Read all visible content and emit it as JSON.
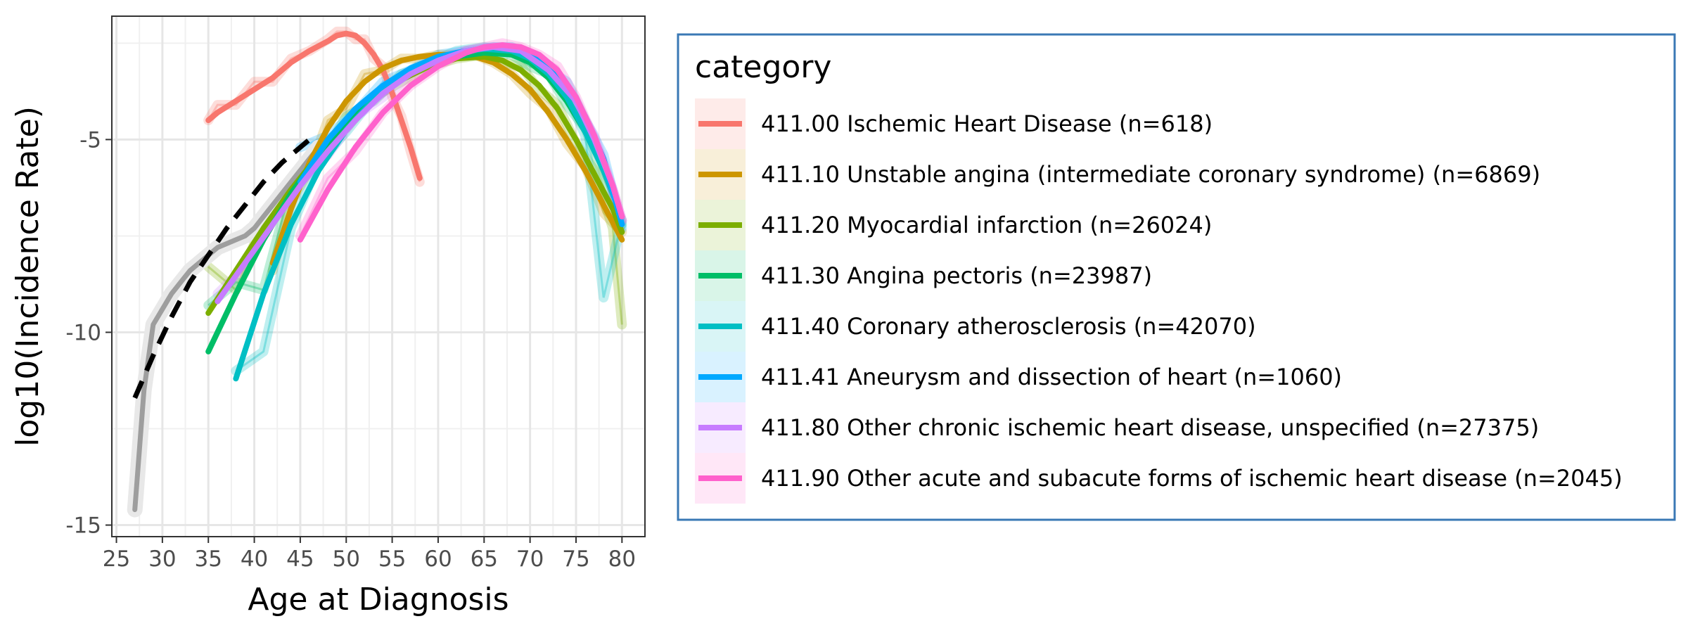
{
  "chart_data": {
    "type": "line",
    "title": "",
    "xlabel": "Age at Diagnosis",
    "ylabel": "log10(Incidence Rate)",
    "xlim": [
      24.5,
      82.5
    ],
    "ylim": [
      -15.3,
      -1.8
    ],
    "x_ticks": [
      25,
      30,
      35,
      40,
      45,
      50,
      55,
      60,
      65,
      70,
      75,
      80
    ],
    "x_tick_labels": [
      "25",
      "30",
      "35",
      "40",
      "45",
      "50",
      "55",
      "60",
      "65",
      "70",
      "75",
      "80"
    ],
    "y_ticks": [
      -15,
      -10,
      -5
    ],
    "y_tick_labels": [
      "-15",
      "-10",
      "-5"
    ],
    "grid": true,
    "legend": {
      "title": "category",
      "placement": "right",
      "entries": [
        "411.00 Ischemic Heart Disease (n=618)",
        "411.10 Unstable angina (intermediate coronary syndrome) (n=6869)",
        "411.20 Myocardial infarction (n=26024)",
        "411.30 Angina pectoris (n=23987)",
        "411.40 Coronary atherosclerosis (n=42070)",
        "411.41 Aneurysm and dissection of heart (n=1060)",
        "411.80 Other chronic ischemic heart disease, unspecified (n=27375)",
        "411.90 Other acute and subacute forms of ischemic heart disease (n=2045)"
      ]
    },
    "reference_series": [
      {
        "name": "overall (observed)",
        "color": "#9e9e9e",
        "x": [
          27,
          28,
          29,
          30,
          31,
          32,
          33,
          34,
          35,
          36,
          37,
          38,
          39,
          40,
          41,
          42,
          43,
          44,
          45,
          46,
          47
        ],
        "y": [
          -14.6,
          -11.5,
          -9.8,
          -9.4,
          -9.0,
          -8.7,
          -8.4,
          -8.2,
          -8.0,
          -7.8,
          -7.7,
          -7.6,
          -7.5,
          -7.3,
          -7.0,
          -6.7,
          -6.4,
          -6.1,
          -5.8,
          -5.5,
          -5.2
        ]
      },
      {
        "name": "overall (fit)",
        "color": "#000000",
        "dashed": true,
        "x": [
          27,
          29,
          31,
          33,
          35,
          37,
          39,
          41,
          43,
          45,
          46
        ],
        "y": [
          -11.7,
          -10.6,
          -9.6,
          -8.7,
          -8.0,
          -7.3,
          -6.7,
          -6.1,
          -5.6,
          -5.2,
          -5.0
        ]
      }
    ],
    "series": [
      {
        "name": "411.00 Ischemic Heart Disease (n=618)",
        "color": "#f8766d",
        "x": [
          35,
          36,
          38,
          40,
          42,
          44,
          46,
          48,
          49,
          50,
          51,
          52,
          53,
          54,
          55,
          56,
          57,
          58
        ],
        "y": [
          -4.5,
          -4.3,
          -4.0,
          -3.7,
          -3.4,
          -3.0,
          -2.7,
          -2.45,
          -2.3,
          -2.25,
          -2.3,
          -2.5,
          -2.8,
          -3.2,
          -3.8,
          -4.5,
          -5.2,
          -6.0
        ],
        "raw_y": [
          -4.5,
          -4.1,
          -4.1,
          -3.5,
          -3.5,
          -2.9,
          -2.7,
          -2.4,
          -2.2,
          -2.2,
          -2.4,
          -2.4,
          -2.9,
          -3.1,
          -3.9,
          -4.4,
          -5.3,
          -6.1
        ]
      },
      {
        "name": "411.10 Unstable angina (intermediate coronary syndrome) (n=6869)",
        "color": "#cd9600",
        "x": [
          42,
          44,
          46,
          48,
          50,
          52,
          54,
          56,
          58,
          60,
          62,
          64,
          66,
          68,
          70,
          72,
          74,
          76,
          78,
          80
        ],
        "y": [
          -8.2,
          -6.8,
          -5.6,
          -4.7,
          -4.0,
          -3.5,
          -3.15,
          -2.95,
          -2.85,
          -2.8,
          -2.8,
          -2.85,
          -3.0,
          -3.3,
          -3.7,
          -4.3,
          -5.0,
          -5.8,
          -6.7,
          -7.6
        ],
        "raw_y": [
          -8.4,
          -6.6,
          -5.8,
          -4.5,
          -4.2,
          -3.3,
          -3.2,
          -2.9,
          -2.9,
          -2.8,
          -2.8,
          -2.8,
          -3.0,
          -3.3,
          -3.8,
          -4.2,
          -5.1,
          -5.7,
          -6.9,
          -7.4
        ]
      },
      {
        "name": "411.20 Myocardial infarction (n=26024)",
        "color": "#7cae00",
        "x": [
          35,
          38,
          41,
          44,
          47,
          50,
          53,
          56,
          59,
          62,
          65,
          67,
          69,
          71,
          73,
          75,
          77,
          79,
          80
        ],
        "y": [
          -9.5,
          -8.4,
          -7.3,
          -6.3,
          -5.4,
          -4.6,
          -3.95,
          -3.45,
          -3.1,
          -2.9,
          -2.85,
          -2.95,
          -3.2,
          -3.6,
          -4.2,
          -5.0,
          -5.9,
          -6.8,
          -7.4
        ],
        "raw_y": [
          -8.3,
          -8.9,
          -7.1,
          -6.5,
          -5.3,
          -4.7,
          -3.9,
          -3.5,
          -3.1,
          -2.9,
          -2.8,
          -3.0,
          -3.1,
          -3.7,
          -4.1,
          -5.1,
          -5.8,
          -7.3,
          -9.8
        ]
      },
      {
        "name": "411.30 Angina pectoris (n=23987)",
        "color": "#00be67",
        "x": [
          35,
          38,
          41,
          44,
          47,
          50,
          53,
          56,
          59,
          62,
          65,
          68,
          70,
          72,
          74,
          76,
          78,
          80
        ],
        "y": [
          -10.5,
          -9.0,
          -7.6,
          -6.4,
          -5.4,
          -4.55,
          -3.9,
          -3.4,
          -3.05,
          -2.85,
          -2.75,
          -2.8,
          -3.0,
          -3.4,
          -4.0,
          -4.8,
          -5.8,
          -7.0
        ],
        "raw_y": [
          -9.3,
          -8.7,
          -8.9,
          -6.2,
          -5.6,
          -4.4,
          -4.0,
          -3.3,
          -3.1,
          -2.8,
          -2.7,
          -2.8,
          -3.1,
          -3.3,
          -4.1,
          -4.7,
          -6.0,
          -7.2
        ]
      },
      {
        "name": "411.40 Coronary atherosclerosis (n=42070)",
        "color": "#00bfc4",
        "x": [
          38,
          41,
          44,
          47,
          50,
          53,
          56,
          59,
          62,
          65,
          68,
          70,
          72,
          74,
          76,
          78,
          80
        ],
        "y": [
          -11.2,
          -9.0,
          -7.2,
          -5.8,
          -4.75,
          -3.95,
          -3.4,
          -3.0,
          -2.75,
          -2.65,
          -2.7,
          -2.9,
          -3.3,
          -3.9,
          -4.8,
          -5.8,
          -7.0
        ],
        "raw_y": [
          -11.0,
          -10.5,
          -7.3,
          -5.6,
          -4.8,
          -3.9,
          -3.4,
          -3.0,
          -2.7,
          -2.6,
          -2.7,
          -2.9,
          -3.3,
          -3.8,
          -4.9,
          -9.1,
          -7.1
        ]
      },
      {
        "name": "411.41 Aneurysm and dissection of heart (n=1060)",
        "color": "#00a9ff",
        "x": [
          45,
          48,
          51,
          54,
          57,
          60,
          63,
          66,
          68,
          70,
          72,
          74,
          76,
          78,
          80
        ],
        "y": [
          -6.1,
          -5.0,
          -4.2,
          -3.6,
          -3.15,
          -2.85,
          -2.7,
          -2.6,
          -2.65,
          -2.8,
          -3.1,
          -3.6,
          -4.4,
          -5.5,
          -7.2
        ],
        "raw_y": [
          -5.2,
          -4.9,
          -4.3,
          -3.5,
          -3.2,
          -2.8,
          -2.7,
          -2.6,
          -2.6,
          -2.8,
          -3.2,
          -3.5,
          -4.5,
          -5.4,
          -7.3
        ]
      },
      {
        "name": "411.80 Other chronic ischemic heart disease, unspecified (n=27375)",
        "color": "#c77cff",
        "x": [
          36,
          39,
          42,
          45,
          48,
          51,
          54,
          57,
          60,
          63,
          66,
          69,
          72,
          75,
          77,
          79,
          80
        ],
        "y": [
          -9.2,
          -8.2,
          -7.2,
          -6.2,
          -5.3,
          -4.5,
          -3.8,
          -3.3,
          -2.95,
          -2.7,
          -2.6,
          -2.7,
          -3.2,
          -4.0,
          -5.0,
          -6.2,
          -7.0
        ],
        "raw_y": [
          -9.0,
          -8.3,
          -7.1,
          -6.1,
          -5.4,
          -4.4,
          -3.9,
          -3.3,
          -2.9,
          -2.7,
          -2.6,
          -2.7,
          -3.1,
          -4.1,
          -4.9,
          -6.3,
          -7.1
        ]
      },
      {
        "name": "411.90 Other acute and subacute forms of ischemic heart disease (n=2045)",
        "color": "#ff61cc",
        "x": [
          45,
          48,
          51,
          54,
          57,
          60,
          63,
          65,
          67,
          69,
          71,
          73,
          75,
          77,
          79,
          80
        ],
        "y": [
          -7.6,
          -6.3,
          -5.2,
          -4.3,
          -3.6,
          -3.1,
          -2.75,
          -2.6,
          -2.55,
          -2.6,
          -2.8,
          -3.2,
          -3.9,
          -4.9,
          -6.2,
          -7.0
        ],
        "raw_y": [
          -7.5,
          -6.0,
          -5.3,
          -4.3,
          -3.6,
          -3.1,
          -2.7,
          -2.6,
          -2.5,
          -2.6,
          -2.8,
          -3.1,
          -3.9,
          -5.0,
          -6.3,
          -7.1
        ]
      }
    ]
  }
}
